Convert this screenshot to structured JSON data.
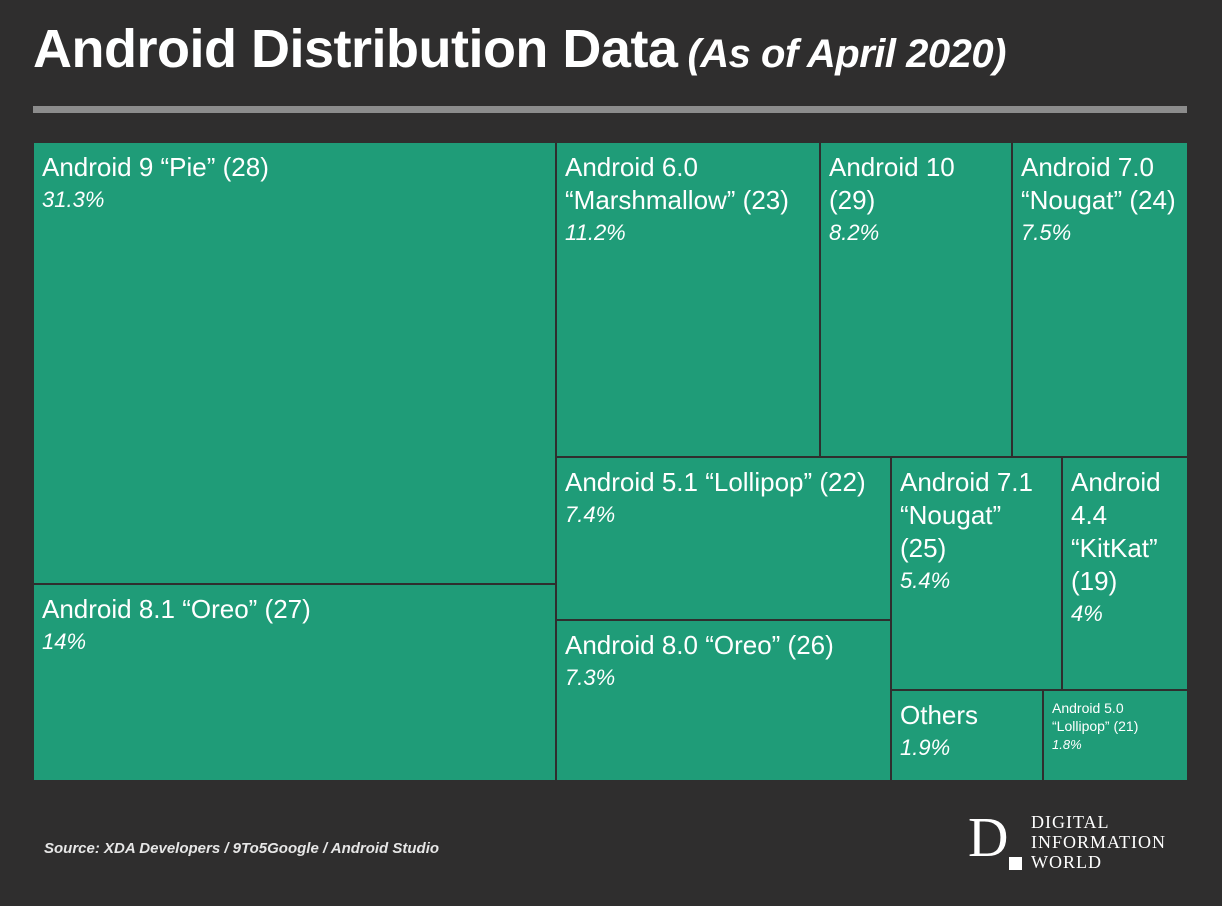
{
  "title": "Android Distribution Data",
  "subtitle": "(As of April 2020)",
  "source": "Source:  XDA Developers / 9To5Google / Android Studio",
  "logo": {
    "mark": "D",
    "lines": [
      "DIGITAL",
      "INFORMATION",
      "WORLD"
    ]
  },
  "colors": {
    "background": "#2f2e2e",
    "tile": "#1f9c78",
    "rule": "#8c8c8c"
  },
  "chart_data": {
    "type": "treemap",
    "title": "Android Distribution Data",
    "subtitle": "(As of April 2020)",
    "items": [
      {
        "label": "Android 9 “Pie” (28)",
        "value": 31.3,
        "value_label": "31.3%"
      },
      {
        "label": "Android 8.1 “Oreo” (27)",
        "value": 14,
        "value_label": "14%"
      },
      {
        "label": "Android 6.0 “Marshmallow” (23)",
        "value": 11.2,
        "value_label": "11.2%"
      },
      {
        "label": "Android 10 (29)",
        "value": 8.2,
        "value_label": "8.2%"
      },
      {
        "label": "Android 7.0 “Nougat” (24)",
        "value": 7.5,
        "value_label": "7.5%"
      },
      {
        "label": "Android 5.1 “Lollipop” (22)",
        "value": 7.4,
        "value_label": "7.4%"
      },
      {
        "label": "Android 8.0 “Oreo” (26)",
        "value": 7.3,
        "value_label": "7.3%"
      },
      {
        "label": "Android 7.1 “Nougat” (25)",
        "value": 5.4,
        "value_label": "5.4%"
      },
      {
        "label": "Android 4.4 “KitKat” (19)",
        "value": 4,
        "value_label": "4%"
      },
      {
        "label": "Others",
        "value": 1.9,
        "value_label": "1.9%"
      },
      {
        "label": "Android 5.0 “Lollipop” (21)",
        "value": 1.8,
        "value_label": "1.8%"
      }
    ]
  }
}
